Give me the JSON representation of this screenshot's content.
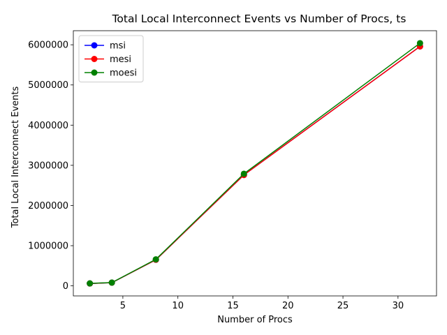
{
  "chart_data": {
    "type": "line",
    "title": "Total Local Interconnect Events vs Number of Procs, ts",
    "xlabel": "Number of Procs",
    "ylabel": "Total Local Interconnect Events",
    "x": [
      2,
      4,
      8,
      16,
      32
    ],
    "xticks": [
      5,
      10,
      15,
      20,
      25,
      30
    ],
    "yticks": [
      0,
      1000000,
      2000000,
      3000000,
      4000000,
      5000000,
      6000000
    ],
    "xlim": [
      0.5,
      33.5
    ],
    "ylim": [
      -250000,
      6350000
    ],
    "grid": false,
    "legend_position": "top-left",
    "series": [
      {
        "name": "msi",
        "color": "#0000ff",
        "values": [
          60000,
          80000,
          650000,
          2760000,
          5960000
        ]
      },
      {
        "name": "mesi",
        "color": "#ff0000",
        "values": [
          60000,
          80000,
          650000,
          2760000,
          5960000
        ]
      },
      {
        "name": "moesi",
        "color": "#008000",
        "values": [
          62000,
          82000,
          660000,
          2790000,
          6040000
        ]
      }
    ]
  }
}
